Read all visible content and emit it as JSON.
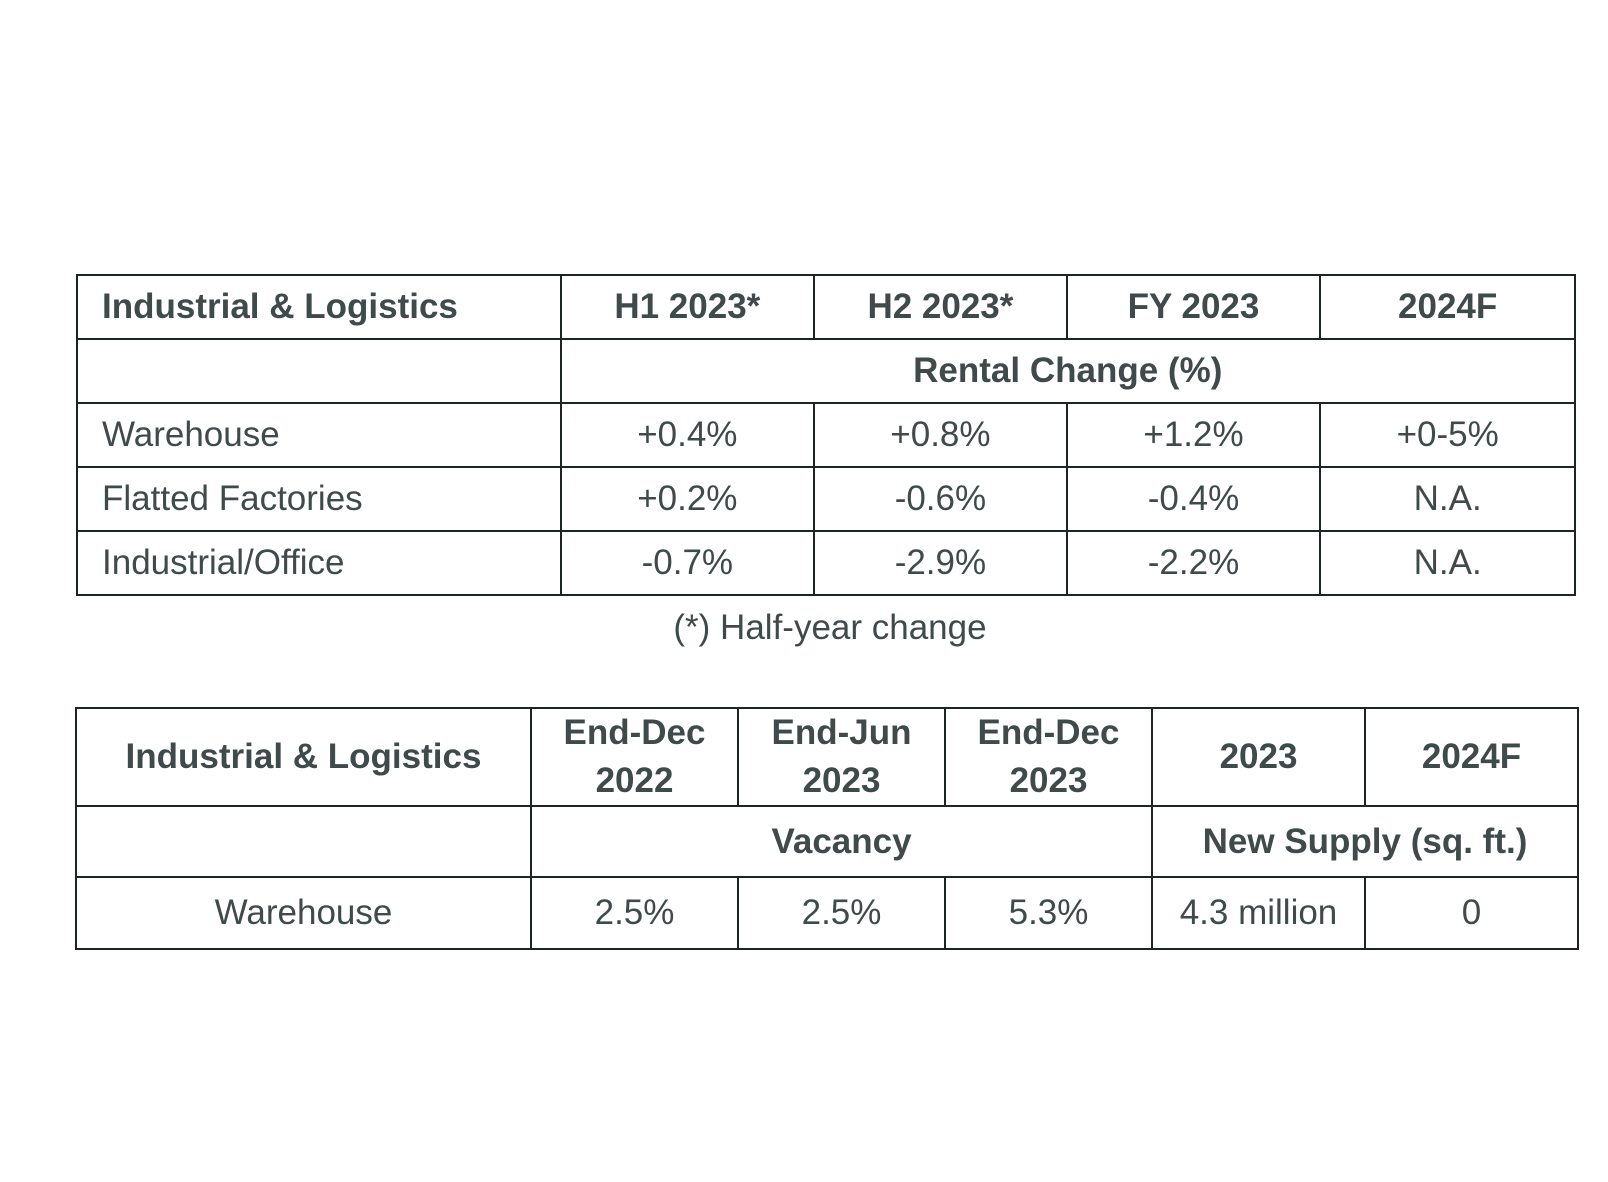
{
  "rental_table": {
    "header": [
      "Industrial & Logistics",
      "H1 2023*",
      "H2 2023*",
      "FY 2023",
      "2024F"
    ],
    "subheader": "Rental Change (%)",
    "rows": [
      {
        "label": "Warehouse",
        "values": [
          "+0.4%",
          "+0.8%",
          "+1.2%",
          "+0-5%"
        ]
      },
      {
        "label": "Flatted Factories",
        "values": [
          "+0.2%",
          "-0.6%",
          "-0.4%",
          "N.A."
        ]
      },
      {
        "label": "Industrial/Office",
        "values": [
          "-0.7%",
          "-2.9%",
          "-2.2%",
          "N.A."
        ]
      }
    ]
  },
  "footnote": "(*) Half-year change",
  "vacancy_table": {
    "header": [
      "Industrial & Logistics",
      "End-Dec\n2022",
      "End-Jun\n2023",
      "End-Dec\n2023",
      "2023",
      "2024F"
    ],
    "subheader_vacancy": "Vacancy",
    "subheader_supply": "New Supply (sq. ft.)",
    "rows": [
      {
        "label": "Warehouse",
        "values": [
          "2.5%",
          "2.5%",
          "5.3%",
          "4.3 million",
          "0"
        ]
      }
    ]
  }
}
